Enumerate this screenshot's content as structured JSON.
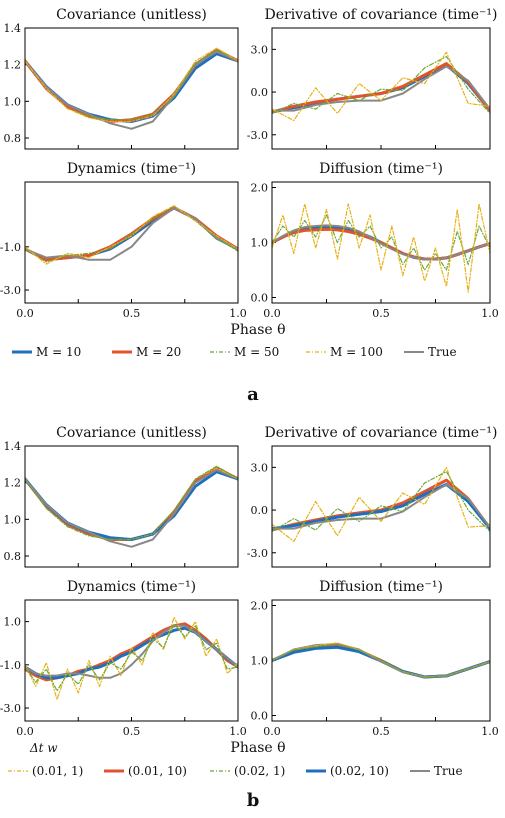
{
  "figure": {
    "panel_labels": [
      "a",
      "b"
    ],
    "xlabel": "Phase θ"
  },
  "legend_a": {
    "entries": [
      {
        "label": "M = 10",
        "color": "#1f6fbf",
        "dash": "solid",
        "width": 3
      },
      {
        "label": "M = 20",
        "color": "#e0532b",
        "dash": "solid",
        "width": 3
      },
      {
        "label": "M = 50",
        "color": "#6aa83a",
        "dash": "dashdot",
        "width": 1.2
      },
      {
        "label": "M = 100",
        "color": "#e8b014",
        "dash": "dashdot",
        "width": 1.2
      },
      {
        "label": "True",
        "color": "#888888",
        "dash": "solid",
        "width": 2
      }
    ]
  },
  "legend_b": {
    "header": "Δt  w",
    "entries": [
      {
        "label": "(0.01, 1)",
        "color": "#e8b014",
        "dash": "dashdot",
        "width": 1.2
      },
      {
        "label": "(0.01, 10)",
        "color": "#e0532b",
        "dash": "solid",
        "width": 3
      },
      {
        "label": "(0.02, 1)",
        "color": "#6aa83a",
        "dash": "dashdot",
        "width": 1.2
      },
      {
        "label": "(0.02, 10)",
        "color": "#1f6fbf",
        "dash": "solid",
        "width": 3
      },
      {
        "label": "True",
        "color": "#888888",
        "dash": "solid",
        "width": 2
      }
    ]
  },
  "chart_data": [
    {
      "type": "line",
      "panel": "a",
      "title": "Covariance (unitless)",
      "ylim": [
        0.74,
        1.4
      ],
      "yticks": [
        "1.4",
        "1.2",
        "1.0",
        "0.8"
      ],
      "ytick_values": [
        1.4,
        1.2,
        1.0,
        0.8
      ],
      "xlim": [
        0,
        1
      ],
      "xticks": [
        "",
        "",
        "",
        ""
      ],
      "x": [
        0,
        0.1,
        0.2,
        0.3,
        0.4,
        0.5,
        0.6,
        0.7,
        0.8,
        0.9,
        1.0
      ],
      "series": [
        {
          "name": "M = 10",
          "values": [
            1.22,
            1.08,
            0.98,
            0.93,
            0.9,
            0.89,
            0.92,
            1.02,
            1.18,
            1.26,
            1.22
          ]
        },
        {
          "name": "M = 20",
          "values": [
            1.22,
            1.07,
            0.97,
            0.92,
            0.89,
            0.9,
            0.93,
            1.04,
            1.2,
            1.28,
            1.22
          ]
        },
        {
          "name": "M = 50",
          "values": [
            1.22,
            1.07,
            0.96,
            0.92,
            0.9,
            0.9,
            0.93,
            1.03,
            1.21,
            1.28,
            1.22
          ]
        },
        {
          "name": "M = 100",
          "values": [
            1.22,
            1.07,
            0.96,
            0.91,
            0.89,
            0.89,
            0.92,
            1.04,
            1.22,
            1.29,
            1.22
          ]
        },
        {
          "name": "True",
          "values": [
            1.22,
            1.08,
            0.98,
            0.93,
            0.88,
            0.85,
            0.89,
            1.03,
            1.2,
            1.27,
            1.22
          ]
        }
      ]
    },
    {
      "type": "line",
      "panel": "a",
      "title": "Derivative of covariance (time⁻¹)",
      "ylim": [
        -4.0,
        4.5
      ],
      "yticks": [
        "3.0",
        "0.0",
        "-3.0"
      ],
      "ytick_values": [
        3.0,
        0.0,
        -3.0
      ],
      "xlim": [
        0,
        1
      ],
      "xticks": [
        "",
        "",
        "",
        ""
      ],
      "x": [
        0,
        0.1,
        0.2,
        0.3,
        0.4,
        0.5,
        0.6,
        0.7,
        0.8,
        0.9,
        1.0
      ],
      "series": [
        {
          "name": "M = 10",
          "values": [
            -1.4,
            -1.1,
            -0.8,
            -0.5,
            -0.3,
            -0.1,
            0.3,
            1.1,
            1.9,
            0.6,
            -1.3
          ]
        },
        {
          "name": "M = 20",
          "values": [
            -1.4,
            -1.0,
            -0.7,
            -0.5,
            -0.3,
            -0.1,
            0.4,
            1.2,
            2.0,
            0.7,
            -1.3
          ]
        },
        {
          "name": "M = 50",
          "values": [
            -1.5,
            -0.8,
            -1.2,
            -0.1,
            -0.6,
            0.2,
            0.1,
            1.7,
            2.5,
            0.2,
            -1.5
          ]
        },
        {
          "name": "M = 100",
          "values": [
            -1.2,
            -2.0,
            0.3,
            -1.5,
            0.6,
            -0.6,
            1.0,
            0.6,
            2.8,
            -0.8,
            -1.0
          ]
        },
        {
          "name": "True",
          "values": [
            -1.3,
            -1.3,
            -0.9,
            -0.7,
            -0.6,
            -0.6,
            -0.1,
            0.9,
            1.8,
            0.8,
            -1.2
          ]
        }
      ]
    },
    {
      "type": "line",
      "panel": "a",
      "title": "Dynamics (time⁻¹)",
      "ylim": [
        -3.6,
        2.0
      ],
      "yticks": [
        "-1.0",
        "-3.0"
      ],
      "ytick_values": [
        -1.0,
        -3.0
      ],
      "xlim": [
        0,
        1
      ],
      "xticks": [
        "0.0",
        "0.5",
        "1.0"
      ],
      "xtick_values": [
        0,
        0.5,
        1.0
      ],
      "x": [
        0,
        0.1,
        0.2,
        0.3,
        0.4,
        0.5,
        0.6,
        0.7,
        0.8,
        0.9,
        1.0
      ],
      "series": [
        {
          "name": "M = 10",
          "values": [
            -1.1,
            -1.6,
            -1.5,
            -1.4,
            -1.1,
            -0.5,
            0.2,
            0.8,
            0.3,
            -0.6,
            -1.1
          ]
        },
        {
          "name": "M = 20",
          "values": [
            -1.1,
            -1.6,
            -1.5,
            -1.4,
            -1.0,
            -0.4,
            0.3,
            0.8,
            0.3,
            -0.5,
            -1.1
          ]
        },
        {
          "name": "M = 50",
          "values": [
            -1.1,
            -1.7,
            -1.4,
            -1.3,
            -1.1,
            -0.4,
            0.3,
            0.9,
            0.2,
            -0.6,
            -1.2
          ]
        },
        {
          "name": "M = 100",
          "values": [
            -1.0,
            -1.8,
            -1.3,
            -1.5,
            -1.0,
            -0.5,
            0.4,
            0.9,
            0.2,
            -0.5,
            -1.1
          ]
        },
        {
          "name": "True",
          "values": [
            -1.1,
            -1.5,
            -1.4,
            -1.6,
            -1.6,
            -1.0,
            0.1,
            0.8,
            0.3,
            -0.6,
            -1.1
          ]
        }
      ]
    },
    {
      "type": "line",
      "panel": "a",
      "title": "Diffusion (time⁻¹)",
      "ylim": [
        -0.1,
        2.1
      ],
      "yticks": [
        "2.0",
        "1.0",
        "0.0"
      ],
      "ytick_values": [
        2.0,
        1.0,
        0.0
      ],
      "xlim": [
        0,
        1
      ],
      "xticks": [
        "0.0",
        "0.5",
        "1.0"
      ],
      "xtick_values": [
        0,
        0.5,
        1.0
      ],
      "x": [
        0,
        0.05,
        0.1,
        0.15,
        0.2,
        0.25,
        0.3,
        0.35,
        0.4,
        0.45,
        0.5,
        0.55,
        0.6,
        0.65,
        0.7,
        0.75,
        0.8,
        0.85,
        0.9,
        0.95,
        1.0
      ],
      "series": [
        {
          "name": "M = 10",
          "values": [
            1.0,
            1.1,
            1.2,
            1.25,
            1.27,
            1.28,
            1.27,
            1.24,
            1.18,
            1.1,
            1.0,
            0.9,
            0.8,
            0.73,
            0.7,
            0.7,
            0.72,
            0.78,
            0.85,
            0.92,
            0.98
          ]
        },
        {
          "name": "M = 20",
          "values": [
            1.0,
            1.1,
            1.18,
            1.22,
            1.23,
            1.24,
            1.23,
            1.2,
            1.15,
            1.08,
            1.0,
            0.9,
            0.8,
            0.74,
            0.7,
            0.7,
            0.72,
            0.78,
            0.85,
            0.92,
            0.98
          ]
        },
        {
          "name": "M = 50",
          "values": [
            1.0,
            1.3,
            1.1,
            1.4,
            1.1,
            1.5,
            1.0,
            1.4,
            1.1,
            1.3,
            0.9,
            1.1,
            0.6,
            0.9,
            0.5,
            0.8,
            0.5,
            1.2,
            0.6,
            1.3,
            0.9
          ]
        },
        {
          "name": "M = 100",
          "values": [
            0.9,
            1.5,
            0.8,
            1.7,
            0.9,
            1.6,
            0.7,
            1.7,
            0.9,
            1.5,
            0.5,
            1.3,
            0.4,
            1.1,
            0.3,
            0.9,
            0.2,
            1.6,
            0.1,
            1.7,
            0.8
          ]
        },
        {
          "name": "True",
          "values": [
            1.0,
            1.12,
            1.22,
            1.28,
            1.3,
            1.31,
            1.3,
            1.27,
            1.2,
            1.1,
            0.98,
            0.88,
            0.79,
            0.73,
            0.7,
            0.7,
            0.72,
            0.78,
            0.85,
            0.92,
            0.98
          ]
        }
      ]
    },
    {
      "type": "line",
      "panel": "b",
      "title": "Covariance (unitless)",
      "ylim": [
        0.74,
        1.4
      ],
      "yticks": [
        "1.4",
        "1.2",
        "1.0",
        "0.8"
      ],
      "ytick_values": [
        1.4,
        1.2,
        1.0,
        0.8
      ],
      "xlim": [
        0,
        1
      ],
      "xticks": [
        "",
        "",
        "",
        ""
      ],
      "x": [
        0,
        0.1,
        0.2,
        0.3,
        0.4,
        0.5,
        0.6,
        0.7,
        0.8,
        0.9,
        1.0
      ],
      "series": [
        {
          "name": "(0.01, 1)",
          "values": [
            1.22,
            1.06,
            0.96,
            0.91,
            0.89,
            0.89,
            0.92,
            1.05,
            1.22,
            1.28,
            1.22
          ]
        },
        {
          "name": "(0.01, 10)",
          "values": [
            1.22,
            1.07,
            0.97,
            0.92,
            0.89,
            0.89,
            0.92,
            1.04,
            1.21,
            1.28,
            1.22
          ]
        },
        {
          "name": "(0.02, 1)",
          "values": [
            1.22,
            1.06,
            0.96,
            0.91,
            0.89,
            0.89,
            0.92,
            1.05,
            1.22,
            1.29,
            1.22
          ]
        },
        {
          "name": "(0.02, 10)",
          "values": [
            1.22,
            1.08,
            0.98,
            0.93,
            0.9,
            0.89,
            0.92,
            1.02,
            1.18,
            1.26,
            1.22
          ]
        },
        {
          "name": "True",
          "values": [
            1.22,
            1.08,
            0.98,
            0.93,
            0.88,
            0.85,
            0.89,
            1.03,
            1.2,
            1.27,
            1.22
          ]
        }
      ]
    },
    {
      "type": "line",
      "panel": "b",
      "title": "Derivative of covariance (time⁻¹)",
      "ylim": [
        -4.0,
        4.5
      ],
      "yticks": [
        "3.0",
        "0.0",
        "-3.0"
      ],
      "ytick_values": [
        3.0,
        0.0,
        -3.0
      ],
      "xlim": [
        0,
        1
      ],
      "xticks": [
        "",
        "",
        "",
        ""
      ],
      "x": [
        0,
        0.1,
        0.2,
        0.3,
        0.4,
        0.5,
        0.6,
        0.7,
        0.8,
        0.9,
        1.0
      ],
      "series": [
        {
          "name": "(0.01, 1)",
          "values": [
            -1.0,
            -2.2,
            0.6,
            -1.8,
            0.9,
            -0.8,
            1.2,
            0.4,
            3.0,
            -1.2,
            -1.1
          ]
        },
        {
          "name": "(0.01, 10)",
          "values": [
            -1.4,
            -1.0,
            -0.7,
            -0.4,
            -0.2,
            0.0,
            0.5,
            1.3,
            2.1,
            0.8,
            -1.3
          ]
        },
        {
          "name": "(0.02, 1)",
          "values": [
            -1.5,
            -0.6,
            -1.4,
            0.1,
            -0.8,
            0.3,
            -0.1,
            1.9,
            2.7,
            0.0,
            -1.5
          ]
        },
        {
          "name": "(0.02, 10)",
          "values": [
            -1.3,
            -1.1,
            -0.8,
            -0.5,
            -0.3,
            -0.1,
            0.3,
            1.1,
            1.8,
            0.6,
            -1.3
          ]
        },
        {
          "name": "True",
          "values": [
            -1.3,
            -1.3,
            -0.9,
            -0.7,
            -0.6,
            -0.6,
            -0.1,
            0.9,
            1.8,
            0.8,
            -1.2
          ]
        }
      ]
    },
    {
      "type": "line",
      "panel": "b",
      "title": "Dynamics (time⁻¹)",
      "ylim": [
        -3.6,
        2.0
      ],
      "yticks": [
        "1.0",
        "-1.0",
        "-3.0"
      ],
      "ytick_values": [
        1.0,
        -1.0,
        -3.0
      ],
      "xlim": [
        0,
        1
      ],
      "xticks": [
        "0.0",
        "0.5",
        "1.0"
      ],
      "xtick_values": [
        0,
        0.5,
        1.0
      ],
      "x": [
        0,
        0.05,
        0.1,
        0.15,
        0.2,
        0.25,
        0.3,
        0.35,
        0.4,
        0.45,
        0.5,
        0.55,
        0.6,
        0.65,
        0.7,
        0.75,
        0.8,
        0.85,
        0.9,
        0.95,
        1.0
      ],
      "series": [
        {
          "name": "(0.01, 1)",
          "values": [
            -1.0,
            -2.0,
            -0.9,
            -2.6,
            -1.2,
            -2.3,
            -0.8,
            -2.0,
            -0.6,
            -1.5,
            -0.2,
            -1.0,
            0.5,
            -0.3,
            1.2,
            0.2,
            1.0,
            -0.6,
            0.2,
            -1.4,
            -0.9
          ]
        },
        {
          "name": "(0.01, 10)",
          "values": [
            -1.2,
            -1.5,
            -1.7,
            -1.6,
            -1.5,
            -1.3,
            -1.2,
            -1.0,
            -0.8,
            -0.5,
            -0.3,
            0.0,
            0.3,
            0.6,
            0.8,
            0.9,
            0.6,
            0.2,
            -0.3,
            -0.8,
            -1.1
          ]
        },
        {
          "name": "(0.02, 1)",
          "values": [
            -1.1,
            -1.8,
            -1.2,
            -2.2,
            -1.4,
            -1.9,
            -1.0,
            -1.7,
            -0.9,
            -1.2,
            -0.4,
            -0.8,
            0.2,
            -0.2,
            0.9,
            0.3,
            0.8,
            -0.3,
            0.0,
            -1.2,
            -1.1
          ]
        },
        {
          "name": "(0.02, 10)",
          "values": [
            -1.1,
            -1.4,
            -1.6,
            -1.6,
            -1.5,
            -1.4,
            -1.2,
            -1.1,
            -0.9,
            -0.6,
            -0.4,
            -0.1,
            0.2,
            0.4,
            0.6,
            0.7,
            0.5,
            0.1,
            -0.3,
            -0.7,
            -1.1
          ]
        },
        {
          "name": "True",
          "values": [
            -1.1,
            -1.4,
            -1.5,
            -1.5,
            -1.4,
            -1.4,
            -1.5,
            -1.6,
            -1.6,
            -1.4,
            -1.0,
            -0.5,
            0.1,
            0.5,
            0.8,
            0.8,
            0.5,
            0.1,
            -0.3,
            -0.7,
            -1.1
          ]
        }
      ]
    },
    {
      "type": "line",
      "panel": "b",
      "title": "Diffusion (time⁻¹)",
      "ylim": [
        -0.1,
        2.1
      ],
      "yticks": [
        "2.0",
        "1.0",
        "0.0"
      ],
      "ytick_values": [
        2.0,
        1.0,
        0.0
      ],
      "xlim": [
        0,
        1
      ],
      "xticks": [
        "0.0",
        "0.5",
        "1.0"
      ],
      "xtick_values": [
        0,
        0.5,
        1.0
      ],
      "x": [
        0,
        0.1,
        0.2,
        0.3,
        0.4,
        0.5,
        0.6,
        0.7,
        0.8,
        0.9,
        1.0
      ],
      "series": [
        {
          "name": "(0.01, 1)",
          "values": [
            1.0,
            1.2,
            1.27,
            1.32,
            1.2,
            1.0,
            0.8,
            0.7,
            0.72,
            0.85,
            0.98
          ]
        },
        {
          "name": "(0.01, 10)",
          "values": [
            1.0,
            1.18,
            1.26,
            1.28,
            1.18,
            1.0,
            0.8,
            0.7,
            0.72,
            0.85,
            0.98
          ]
        },
        {
          "name": "(0.02, 1)",
          "values": [
            1.0,
            1.19,
            1.25,
            1.3,
            1.19,
            1.0,
            0.8,
            0.7,
            0.72,
            0.85,
            0.98
          ]
        },
        {
          "name": "(0.02, 10)",
          "values": [
            1.0,
            1.15,
            1.22,
            1.24,
            1.16,
            0.99,
            0.8,
            0.7,
            0.72,
            0.85,
            0.98
          ]
        },
        {
          "name": "True",
          "values": [
            1.0,
            1.2,
            1.28,
            1.3,
            1.2,
            0.98,
            0.79,
            0.7,
            0.72,
            0.85,
            0.98
          ]
        }
      ]
    }
  ]
}
